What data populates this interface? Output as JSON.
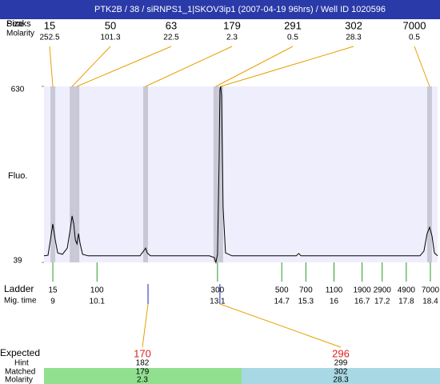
{
  "chart_data": {
    "type": "electropherogram",
    "title": "PTK2B / 38 / siRNPS1_1|SKOV3ip1 (2007-04-19 96hrs) / Well ID 1020596",
    "y_label": "Fluo.",
    "ylim": [
      39,
      630
    ],
    "yticks": [
      39,
      630
    ],
    "xlim": [
      8.78,
      18.58
    ],
    "trace": {
      "color": "#000000",
      "x": [
        8.78,
        8.88,
        8.94,
        9.0,
        9.06,
        9.12,
        9.24,
        9.36,
        9.44,
        9.48,
        9.52,
        9.56,
        9.6,
        9.64,
        9.68,
        9.74,
        9.88,
        11.17,
        11.27,
        11.31,
        11.35,
        11.43,
        12.9,
        13.02,
        13.06,
        13.1,
        13.14,
        13.16,
        13.18,
        13.2,
        13.24,
        13.3,
        13.46,
        15.06,
        15.12,
        15.18,
        18.14,
        18.24,
        18.32,
        18.38,
        18.44,
        18.5,
        18.58
      ],
      "values": [
        61,
        63,
        114,
        168,
        114,
        71,
        66,
        87,
        155,
        195,
        168,
        114,
        101,
        136,
        101,
        66,
        61,
        61,
        79,
        87,
        71,
        61,
        61,
        55,
        39,
        66,
        383,
        619,
        630,
        598,
        222,
        71,
        61,
        61,
        69,
        61,
        61,
        77,
        136,
        157,
        128,
        71,
        61
      ]
    },
    "peaks": {
      "peaks_label": "Peaks",
      "size_label": "Size",
      "molarity_label": "Molarity",
      "sizes": [
        15,
        50,
        63,
        179,
        291,
        302,
        7000
      ],
      "molarities": [
        252.5,
        101.3,
        22.5,
        2.3,
        0.5,
        28.3,
        0.5
      ],
      "mig_times": [
        9.0,
        9.48,
        9.6,
        11.31,
        13.06,
        13.18,
        18.38
      ]
    },
    "ladder": {
      "label": "Ladder",
      "mig_label": "Mig. time",
      "sizes": [
        15,
        100,
        300,
        500,
        700,
        1100,
        1900,
        2900,
        4900,
        7000
      ],
      "mig_times": [
        9,
        10.1,
        13.1,
        14.7,
        15.3,
        16,
        16.7,
        17.2,
        17.8,
        18.4
      ]
    },
    "expected": {
      "label": "Expected",
      "values": [
        170,
        296
      ],
      "mig_times": [
        11.37,
        13.16
      ],
      "hint_label": "Hint",
      "hints": [
        182,
        299
      ],
      "matched_label": "Matched",
      "matched": [
        179,
        302
      ],
      "molarity_label": "Molarity",
      "molarities": [
        2.3,
        28.3
      ]
    }
  }
}
